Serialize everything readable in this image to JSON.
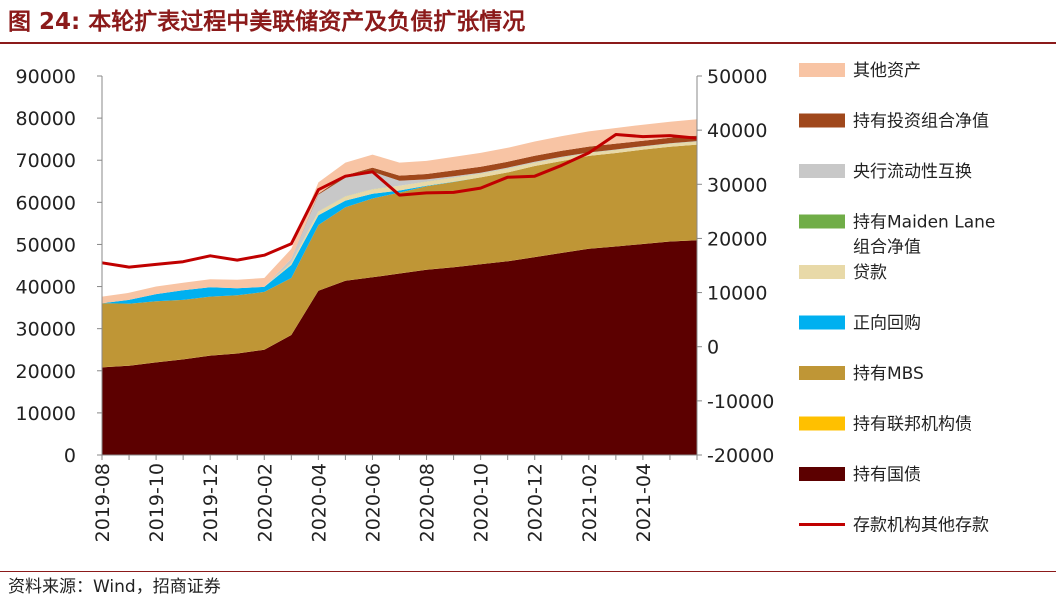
{
  "figure": {
    "title": "图 24:  本轮扩表过程中美联储资产及负债扩张情况",
    "source": "资料来源：Wind，招商证券"
  },
  "chart_data": {
    "type": "area",
    "stacked": true,
    "x": [
      "2019-08",
      "2019-09",
      "2019-10",
      "2019-11",
      "2019-12",
      "2020-01",
      "2020-02",
      "2020-03",
      "2020-04",
      "2020-05",
      "2020-06",
      "2020-07",
      "2020-08",
      "2020-09",
      "2020-10",
      "2020-11",
      "2020-12",
      "2021-01",
      "2021-02",
      "2021-03",
      "2021-04",
      "2021-05",
      "2021-06"
    ],
    "x_tick_labels": [
      "2019-08",
      "2019-10",
      "2019-12",
      "2020-02",
      "2020-04",
      "2020-06",
      "2020-08",
      "2020-10",
      "2020-12",
      "2021-02",
      "2021-04"
    ],
    "left_axis": {
      "min": 0,
      "max": 90000,
      "ticks": [
        0,
        10000,
        20000,
        30000,
        40000,
        50000,
        60000,
        70000,
        80000,
        90000
      ]
    },
    "right_axis": {
      "min": -20000,
      "max": 50000,
      "ticks": [
        -20000,
        -10000,
        0,
        10000,
        20000,
        30000,
        40000,
        50000
      ]
    },
    "series": [
      {
        "name": "持有国债",
        "color": "#5c0000",
        "axis": "left",
        "values": [
          20800,
          21200,
          22000,
          22700,
          23600,
          24100,
          25000,
          28500,
          39000,
          41400,
          42200,
          43100,
          44000,
          44600,
          45300,
          46000,
          47000,
          48000,
          49000,
          49500,
          50100,
          50700,
          51000
        ]
      },
      {
        "name": "持有联邦机构债",
        "color": "#ffc000",
        "axis": "left",
        "values": [
          20,
          20,
          20,
          20,
          20,
          20,
          20,
          20,
          20,
          20,
          20,
          20,
          20,
          20,
          20,
          20,
          20,
          20,
          20,
          20,
          20,
          20,
          20
        ]
      },
      {
        "name": "持有MBS",
        "color": "#bf9636",
        "axis": "left",
        "values": [
          15200,
          14700,
          14500,
          14100,
          14000,
          13800,
          13700,
          13500,
          15600,
          17400,
          18700,
          19200,
          19800,
          20200,
          20600,
          21100,
          21600,
          21800,
          22000,
          22200,
          22400,
          22500,
          22700
        ]
      },
      {
        "name": "正向回购",
        "color": "#00b0f0",
        "axis": "left",
        "values": [
          0,
          900,
          1700,
          2300,
          2200,
          1700,
          1200,
          3100,
          2300,
          1600,
          1100,
          500,
          100,
          50,
          0,
          0,
          0,
          0,
          0,
          0,
          0,
          0,
          0
        ]
      },
      {
        "name": "贷款",
        "color": "#e8d9a8",
        "axis": "left",
        "values": [
          0,
          0,
          0,
          0,
          0,
          0,
          0,
          500,
          900,
          1000,
          1100,
          1100,
          1000,
          1000,
          900,
          900,
          800,
          800,
          700,
          700,
          700,
          700,
          700
        ]
      },
      {
        "name": "持有Maiden Lane组合净值",
        "color": "#70ad47",
        "axis": "left",
        "values": [
          0,
          0,
          0,
          0,
          0,
          0,
          0,
          20,
          20,
          20,
          20,
          20,
          20,
          20,
          20,
          20,
          20,
          20,
          20,
          20,
          20,
          20,
          20
        ]
      },
      {
        "name": "央行流动性互换",
        "color": "#c8c8c8",
        "axis": "left",
        "values": [
          0,
          0,
          0,
          0,
          0,
          0,
          0,
          1000,
          4000,
          4400,
          4100,
          1200,
          500,
          300,
          200,
          200,
          200,
          200,
          100,
          100,
          100,
          100,
          100
        ]
      },
      {
        "name": "持有投资组合净值",
        "color": "#a0481c",
        "axis": "left",
        "values": [
          0,
          0,
          0,
          0,
          0,
          0,
          0,
          0,
          200,
          600,
          1000,
          1200,
          1300,
          1400,
          1400,
          1400,
          1400,
          1400,
          1400,
          1400,
          1300,
          1300,
          1300
        ]
      },
      {
        "name": "其他资产",
        "color": "#f8c4a4",
        "axis": "left",
        "values": [
          1600,
          1700,
          1800,
          1800,
          1900,
          2000,
          2100,
          2300,
          2700,
          3000,
          3100,
          3100,
          3100,
          3200,
          3300,
          3300,
          3400,
          3500,
          3600,
          3700,
          3800,
          3800,
          3900
        ]
      },
      {
        "name": "存款机构其他存款",
        "color": "#c00000",
        "axis": "right",
        "type": "line",
        "values": [
          15500,
          14700,
          15200,
          15700,
          16800,
          16000,
          16900,
          19000,
          29000,
          31500,
          32300,
          28000,
          28400,
          28500,
          29300,
          31300,
          31500,
          33500,
          35800,
          39200,
          38800,
          39000,
          38500
        ]
      }
    ],
    "legend": {
      "position": "right",
      "items": [
        {
          "label": "其他资产",
          "color": "#f8c4a4",
          "marker": "area"
        },
        {
          "label": "持有投资组合净值",
          "color": "#a0481c",
          "marker": "area"
        },
        {
          "label": "央行流动性互换",
          "color": "#c8c8c8",
          "marker": "area"
        },
        {
          "label": "持有Maiden Lane",
          "label2": "组合净值",
          "color": "#70ad47",
          "marker": "area"
        },
        {
          "label": "贷款",
          "color": "#e8d9a8",
          "marker": "area"
        },
        {
          "label": "正向回购",
          "color": "#00b0f0",
          "marker": "area"
        },
        {
          "label": "持有MBS",
          "color": "#bf9636",
          "marker": "area"
        },
        {
          "label": "持有联邦机构债",
          "color": "#ffc000",
          "marker": "area"
        },
        {
          "label": "持有国债",
          "color": "#5c0000",
          "marker": "area"
        },
        {
          "label": "存款机构其他存款",
          "color": "#c00000",
          "marker": "line"
        }
      ]
    },
    "grid": false
  }
}
